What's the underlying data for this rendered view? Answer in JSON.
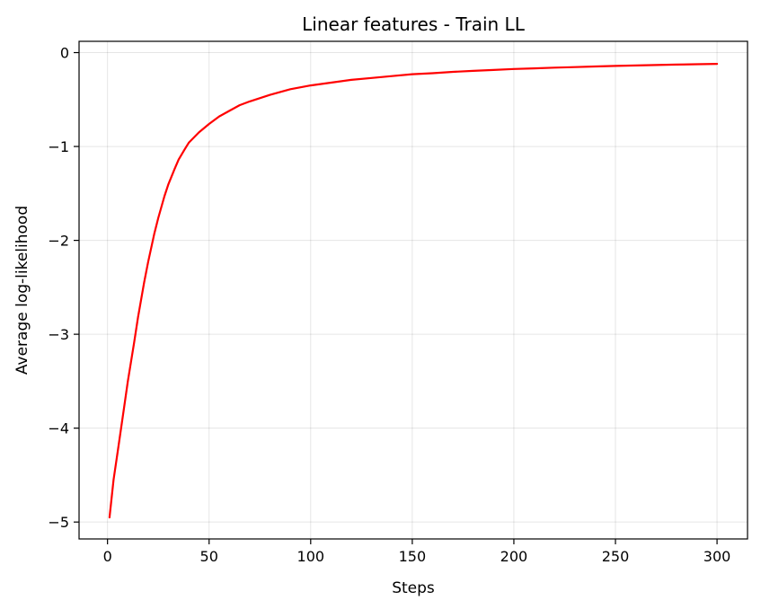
{
  "chart_data": {
    "type": "line",
    "title": "Linear features - Train LL",
    "xlabel": "Steps",
    "ylabel": "Average log-likelihood",
    "xlim": [
      -14,
      315
    ],
    "ylim": [
      -5.18,
      0.12
    ],
    "xticks": [
      0,
      50,
      100,
      150,
      200,
      250,
      300
    ],
    "yticks": [
      0,
      -1,
      -2,
      -3,
      -4,
      -5
    ],
    "xtick_labels": [
      "0",
      "50",
      "100",
      "150",
      "200",
      "250",
      "300"
    ],
    "ytick_labels": [
      "0",
      "−1",
      "−2",
      "−3",
      "−4",
      "−5"
    ],
    "grid": true,
    "legend": null,
    "series": [
      {
        "color": "#ff0000",
        "x": [
          1,
          3,
          5,
          8,
          10,
          13,
          15,
          18,
          20,
          23,
          25,
          28,
          30,
          33,
          35,
          38,
          40,
          45,
          50,
          55,
          60,
          65,
          70,
          80,
          90,
          100,
          110,
          120,
          130,
          140,
          150,
          160,
          170,
          180,
          190,
          200,
          210,
          220,
          230,
          240,
          250,
          260,
          270,
          280,
          290,
          300
        ],
        "y": [
          -4.95,
          -4.55,
          -4.25,
          -3.8,
          -3.5,
          -3.1,
          -2.82,
          -2.45,
          -2.23,
          -1.93,
          -1.76,
          -1.53,
          -1.4,
          -1.24,
          -1.14,
          -1.03,
          -0.96,
          -0.85,
          -0.76,
          -0.68,
          -0.62,
          -0.56,
          -0.52,
          -0.45,
          -0.39,
          -0.35,
          -0.32,
          -0.29,
          -0.27,
          -0.25,
          -0.23,
          -0.22,
          -0.205,
          -0.195,
          -0.185,
          -0.175,
          -0.168,
          -0.16,
          -0.155,
          -0.148,
          -0.142,
          -0.137,
          -0.133,
          -0.128,
          -0.124,
          -0.12
        ]
      }
    ]
  }
}
